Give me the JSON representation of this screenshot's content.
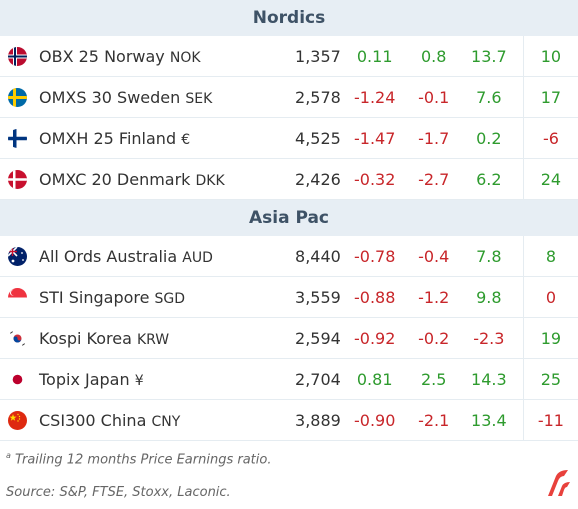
{
  "sections": [
    {
      "title": "Nordics",
      "rows": [
        {
          "flag": "norway-flag-icon",
          "name": "OBX 25 Norway",
          "currency": "NOK",
          "value": "1,357",
          "c1": "0.11",
          "c2": "0.8",
          "c3": "13.7",
          "c4": "10",
          "s1": "pos",
          "s2": "pos",
          "s3": "pos",
          "s4": "pos"
        },
        {
          "flag": "sweden-flag-icon",
          "name": "OMXS 30 Sweden",
          "currency": "SEK",
          "value": "2,578",
          "c1": "-1.24",
          "c2": "-0.1",
          "c3": "7.6",
          "c4": "17",
          "s1": "neg",
          "s2": "neg",
          "s3": "pos",
          "s4": "pos"
        },
        {
          "flag": "finland-flag-icon",
          "name": "OMXH 25 Finland",
          "currency": "€",
          "value": "4,525",
          "c1": "-1.47",
          "c2": "-1.7",
          "c3": "0.2",
          "c4": "-6",
          "s1": "neg",
          "s2": "neg",
          "s3": "pos",
          "s4": "neg"
        },
        {
          "flag": "denmark-flag-icon",
          "name": "OMXC 20 Denmark",
          "currency": "DKK",
          "value": "2,426",
          "c1": "-0.32",
          "c2": "-2.7",
          "c3": "6.2",
          "c4": "24",
          "s1": "neg",
          "s2": "neg",
          "s3": "pos",
          "s4": "pos"
        }
      ]
    },
    {
      "title": "Asia Pac",
      "rows": [
        {
          "flag": "australia-flag-icon",
          "name": "All Ords Australia",
          "currency": "AUD",
          "value": "8,440",
          "c1": "-0.78",
          "c2": "-0.4",
          "c3": "7.8",
          "c4": "8",
          "s1": "neg",
          "s2": "neg",
          "s3": "pos",
          "s4": "pos"
        },
        {
          "flag": "singapore-flag-icon",
          "name": "STI Singapore",
          "currency": "SGD",
          "value": "3,559",
          "c1": "-0.88",
          "c2": "-1.2",
          "c3": "9.8",
          "c4": "0",
          "s1": "neg",
          "s2": "neg",
          "s3": "pos",
          "s4": "neg"
        },
        {
          "flag": "korea-flag-icon",
          "name": "Kospi Korea",
          "currency": "KRW",
          "value": "2,594",
          "c1": "-0.92",
          "c2": "-0.2",
          "c3": "-2.3",
          "c4": "19",
          "s1": "neg",
          "s2": "neg",
          "s3": "neg",
          "s4": "pos"
        },
        {
          "flag": "japan-flag-icon",
          "name": "Topix Japan",
          "currency": "¥",
          "value": "2,704",
          "c1": "0.81",
          "c2": "2.5",
          "c3": "14.3",
          "c4": "25",
          "s1": "pos",
          "s2": "pos",
          "s3": "pos",
          "s4": "pos"
        },
        {
          "flag": "china-flag-icon",
          "name": "CSI300 China",
          "currency": "CNY",
          "value": "3,889",
          "c1": "-0.90",
          "c2": "-2.1",
          "c3": "13.4",
          "c4": "-11",
          "s1": "neg",
          "s2": "neg",
          "s3": "pos",
          "s4": "neg"
        }
      ]
    }
  ],
  "footnote": {
    "mark": "a",
    "text": "Trailing 12 months Price Earnings ratio."
  },
  "source": "Source: S&P, FTSE, Stoxx, Laconic.",
  "colors": {
    "positive": "#2e9b2e",
    "negative": "#c8262a",
    "header_bg": "#e7eef4",
    "logo": "#e8413c"
  },
  "logo_icon": "laconic-logo-icon"
}
